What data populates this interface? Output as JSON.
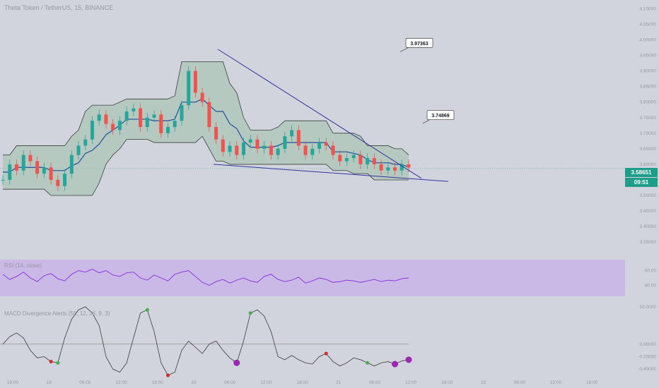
{
  "header": {
    "title": "Theta Token / TetherUS, 15, BINANCE"
  },
  "colors": {
    "background": "#d1d4dc",
    "cloud_fill": "#a9c4b4",
    "cloud_border": "#3a3f3a",
    "baseline": "#2d5aa0",
    "trendline": "#33339e",
    "candle_up": "#26a69a",
    "candle_down": "#ef5350",
    "rsi_line": "#8a2be2",
    "rsi_band": "#c9b3e8",
    "price_tag": "#1e9e8a",
    "macd_line": "#3a3a3a",
    "dot_green": "#4caf50",
    "dot_red": "#d32f2f",
    "dot_purple": "#9c27b0"
  },
  "price_axis": {
    "ticks": [
      "4.10000",
      "4.05000",
      "4.00000",
      "3.95000",
      "3.90000",
      "3.85000",
      "3.80000",
      "3.75000",
      "3.70000",
      "3.65000",
      "3.60000",
      "3.55000",
      "3.50000",
      "3.45000",
      "3.40000",
      "3.35000"
    ]
  },
  "current_price": {
    "value": "3.58651",
    "countdown": "09:51"
  },
  "callouts": [
    {
      "label": "3.97363"
    },
    {
      "label": "3.74869"
    }
  ],
  "rsi_panel": {
    "label": "RSI (14, close)",
    "ticks": [
      "60.00",
      "40.00"
    ]
  },
  "macd_panel": {
    "label": "MACD Divergence Alerts (55, 12, 26, 9, 3)",
    "ticks": [
      "50.0000",
      "0.00000",
      "-0.20000",
      "-0.40000"
    ]
  },
  "time_axis": {
    "ticks": [
      "18:00",
      "19",
      "06:00",
      "12:00",
      "18:00",
      "20",
      "06:00",
      "12:00",
      "18:00",
      "21",
      "06:00",
      "12:00",
      "18:00",
      "22",
      "06:00",
      "12:00",
      "18:00"
    ]
  },
  "chart_data": {
    "type": "candlestick",
    "title": "Theta Token / TetherUS, 15, BINANCE",
    "xlabel": "",
    "ylabel": "",
    "ylim": [
      3.33,
      4.11
    ],
    "last_price": 3.58651,
    "annotations": [
      {
        "type": "callout",
        "value": 3.97363,
        "text": "3.97363"
      },
      {
        "type": "callout",
        "value": 3.74869,
        "text": "3.74869"
      },
      {
        "type": "trendline",
        "name": "upper descending",
        "from_price": 3.97,
        "to_price": 3.54
      },
      {
        "type": "trendline",
        "name": "lower descending",
        "from_price": 3.6,
        "to_price": 3.54
      }
    ],
    "price_series": [
      3.55,
      3.6,
      3.58,
      3.63,
      3.61,
      3.57,
      3.59,
      3.55,
      3.53,
      3.57,
      3.63,
      3.66,
      3.68,
      3.74,
      3.76,
      3.73,
      3.71,
      3.74,
      3.77,
      3.78,
      3.72,
      3.75,
      3.76,
      3.7,
      3.72,
      3.74,
      3.79,
      3.9,
      3.83,
      3.8,
      3.72,
      3.68,
      3.64,
      3.66,
      3.63,
      3.67,
      3.68,
      3.65,
      3.66,
      3.63,
      3.65,
      3.69,
      3.71,
      3.66,
      3.63,
      3.65,
      3.67,
      3.66,
      3.63,
      3.61,
      3.62,
      3.63,
      3.6,
      3.62,
      3.6,
      3.58,
      3.59,
      3.58,
      3.6,
      3.59
    ],
    "rsi_series": [
      55,
      48,
      52,
      58,
      50,
      45,
      53,
      56,
      49,
      46,
      55,
      60,
      58,
      62,
      57,
      60,
      54,
      52,
      57,
      58,
      50,
      47,
      54,
      50,
      46,
      55,
      58,
      60,
      52,
      44,
      40,
      45,
      48,
      43,
      47,
      50,
      46,
      44,
      52,
      55,
      48,
      45,
      47,
      51,
      43,
      46,
      50,
      48,
      44,
      45,
      47,
      46,
      44,
      46,
      48,
      45,
      47,
      46,
      49,
      50
    ],
    "macd_series": [
      0.0,
      0.12,
      0.18,
      0.1,
      -0.1,
      -0.22,
      -0.2,
      -0.28,
      -0.3,
      0.1,
      0.4,
      0.55,
      0.6,
      0.5,
      0.3,
      -0.2,
      -0.4,
      -0.45,
      -0.3,
      0.1,
      0.5,
      0.55,
      0.2,
      -0.3,
      -0.5,
      -0.45,
      -0.1,
      0.05,
      -0.05,
      -0.15,
      0.0,
      0.05,
      -0.1,
      -0.22,
      -0.3,
      0.05,
      0.5,
      0.55,
      0.45,
      0.2,
      -0.2,
      -0.25,
      -0.18,
      -0.25,
      -0.3,
      -0.32,
      -0.2,
      -0.15,
      -0.28,
      -0.35,
      -0.3,
      -0.22,
      -0.25,
      -0.3,
      -0.35,
      -0.3,
      -0.28,
      -0.32,
      -0.27,
      -0.25
    ],
    "divergence_dots": [
      {
        "index": 7,
        "color": "red"
      },
      {
        "index": 8,
        "color": "green"
      },
      {
        "index": 21,
        "color": "green"
      },
      {
        "index": 24,
        "color": "red"
      },
      {
        "index": 34,
        "color": "purple"
      },
      {
        "index": 36,
        "color": "green"
      },
      {
        "index": 47,
        "color": "red"
      },
      {
        "index": 53,
        "color": "green"
      },
      {
        "index": 57,
        "color": "purple"
      },
      {
        "index": 59,
        "color": "purple"
      }
    ]
  }
}
